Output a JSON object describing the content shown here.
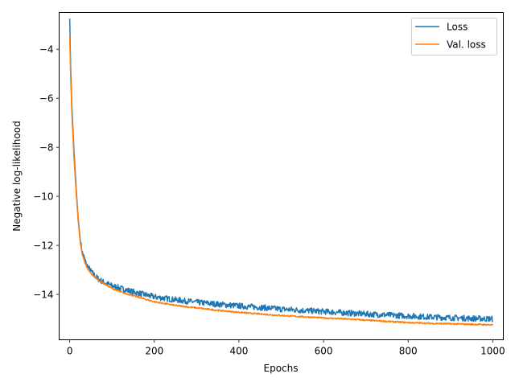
{
  "chart_data": {
    "type": "line",
    "xlabel": "Epochs",
    "ylabel": "Negative log-likelihood",
    "xlim": [
      -25,
      1025
    ],
    "ylim": [
      -15.85,
      -2.5
    ],
    "xticks": [
      0,
      200,
      400,
      600,
      800,
      1000
    ],
    "yticks": [
      -14,
      -12,
      -10,
      -8,
      -6,
      -4
    ],
    "grid": false,
    "legend": "upper right",
    "series": [
      {
        "name": "Loss",
        "color": "#1f77b4",
        "noise": 0.12,
        "x": [
          0,
          2,
          5,
          10,
          15,
          20,
          25,
          30,
          40,
          50,
          60,
          70,
          80,
          100,
          120,
          150,
          200,
          250,
          300,
          350,
          400,
          450,
          500,
          550,
          600,
          650,
          700,
          750,
          800,
          850,
          900,
          950,
          1000
        ],
        "y": [
          -2.75,
          -4.6,
          -6.3,
          -8.1,
          -9.6,
          -10.9,
          -11.8,
          -12.3,
          -12.8,
          -13.05,
          -13.25,
          -13.4,
          -13.5,
          -13.65,
          -13.75,
          -13.9,
          -14.1,
          -14.22,
          -14.32,
          -14.4,
          -14.47,
          -14.53,
          -14.6,
          -14.65,
          -14.7,
          -14.75,
          -14.8,
          -14.84,
          -14.88,
          -14.92,
          -14.95,
          -14.98,
          -15.0
        ]
      },
      {
        "name": "Val. loss",
        "color": "#ff7f0e",
        "noise": 0.03,
        "x": [
          0,
          2,
          5,
          10,
          15,
          20,
          25,
          30,
          40,
          50,
          60,
          70,
          80,
          100,
          120,
          150,
          200,
          250,
          300,
          350,
          400,
          450,
          500,
          550,
          600,
          650,
          700,
          750,
          800,
          850,
          900,
          950,
          1000
        ],
        "y": [
          -3.5,
          -5.0,
          -6.6,
          -8.4,
          -9.8,
          -11.0,
          -11.9,
          -12.4,
          -12.9,
          -13.15,
          -13.3,
          -13.45,
          -13.55,
          -13.75,
          -13.9,
          -14.05,
          -14.3,
          -14.45,
          -14.55,
          -14.65,
          -14.73,
          -14.8,
          -14.86,
          -14.91,
          -14.96,
          -15.0,
          -15.05,
          -15.1,
          -15.15,
          -15.18,
          -15.2,
          -15.22,
          -15.24
        ]
      }
    ]
  }
}
